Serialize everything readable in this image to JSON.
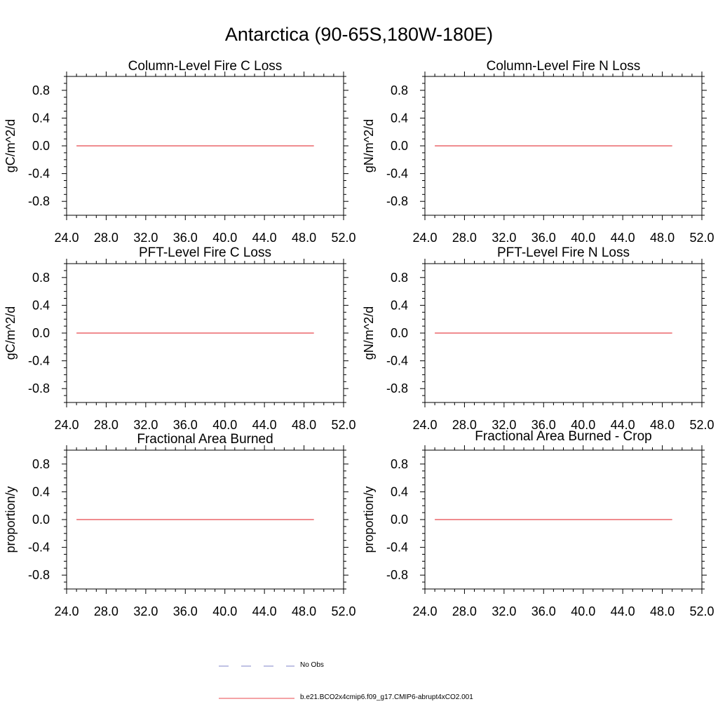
{
  "title": "Antarctica (90-65S,180W-180E)",
  "colors": {
    "model": "#e8474c",
    "obs": "#7f86c9",
    "frame": "#000000"
  },
  "legend": [
    {
      "label": "No Obs",
      "style": "dashed",
      "color": "#7f86c9"
    },
    {
      "label": "b.e21.BCO2x4cmip6.f09_g17.CMIP6-abrupt4xCO2.001",
      "style": "solid",
      "color": "#e8474c"
    }
  ],
  "chart_data": [
    {
      "type": "line",
      "title": "Column-Level Fire C Loss",
      "ylabel": "gC/m^2/d",
      "xlim": [
        24,
        52
      ],
      "ylim": [
        -1,
        1
      ],
      "xticks": [
        "24.0",
        "28.0",
        "32.0",
        "36.0",
        "40.0",
        "44.0",
        "48.0",
        "52.0"
      ],
      "yticks": [
        "0.8",
        "0.4",
        "0.0",
        "-0.4",
        "-0.8"
      ],
      "series": [
        {
          "name": "b.e21.BCO2x4cmip6.f09_g17.CMIP6-abrupt4xCO2.001",
          "x": [
            25,
            49
          ],
          "y": [
            0,
            0
          ]
        }
      ]
    },
    {
      "type": "line",
      "title": "Column-Level Fire N Loss",
      "ylabel": "gN/m^2/d",
      "xlim": [
        24,
        52
      ],
      "ylim": [
        -1,
        1
      ],
      "xticks": [
        "24.0",
        "28.0",
        "32.0",
        "36.0",
        "40.0",
        "44.0",
        "48.0",
        "52.0"
      ],
      "yticks": [
        "0.8",
        "0.4",
        "0.0",
        "-0.4",
        "-0.8"
      ],
      "series": [
        {
          "name": "b.e21.BCO2x4cmip6.f09_g17.CMIP6-abrupt4xCO2.001",
          "x": [
            25,
            49
          ],
          "y": [
            0,
            0
          ]
        }
      ]
    },
    {
      "type": "line",
      "title": "PFT-Level Fire C Loss",
      "ylabel": "gC/m^2/d",
      "xlim": [
        24,
        52
      ],
      "ylim": [
        -1,
        1
      ],
      "xticks": [
        "24.0",
        "28.0",
        "32.0",
        "36.0",
        "40.0",
        "44.0",
        "48.0",
        "52.0"
      ],
      "yticks": [
        "0.8",
        "0.4",
        "0.0",
        "-0.4",
        "-0.8"
      ],
      "series": [
        {
          "name": "b.e21.BCO2x4cmip6.f09_g17.CMIP6-abrupt4xCO2.001",
          "x": [
            25,
            49
          ],
          "y": [
            0,
            0
          ]
        }
      ]
    },
    {
      "type": "line",
      "title": "PFT-Level Fire N Loss",
      "ylabel": "gN/m^2/d",
      "xlim": [
        24,
        52
      ],
      "ylim": [
        -1,
        1
      ],
      "xticks": [
        "24.0",
        "28.0",
        "32.0",
        "36.0",
        "40.0",
        "44.0",
        "48.0",
        "52.0"
      ],
      "yticks": [
        "0.8",
        "0.4",
        "0.0",
        "-0.4",
        "-0.8"
      ],
      "series": [
        {
          "name": "b.e21.BCO2x4cmip6.f09_g17.CMIP6-abrupt4xCO2.001",
          "x": [
            25,
            49
          ],
          "y": [
            0,
            0
          ]
        }
      ]
    },
    {
      "type": "line",
      "title": "Fractional Area Burned",
      "ylabel": "proportion/y",
      "xlim": [
        24,
        52
      ],
      "ylim": [
        -1,
        1
      ],
      "xticks": [
        "24.0",
        "28.0",
        "32.0",
        "36.0",
        "40.0",
        "44.0",
        "48.0",
        "52.0"
      ],
      "yticks": [
        "0.8",
        "0.4",
        "0.0",
        "-0.4",
        "-0.8"
      ],
      "series": [
        {
          "name": "b.e21.BCO2x4cmip6.f09_g17.CMIP6-abrupt4xCO2.001",
          "x": [
            25,
            49
          ],
          "y": [
            0,
            0
          ]
        }
      ]
    },
    {
      "type": "line",
      "title": "Fractional Area Burned - Crop",
      "ylabel": "proportion/y",
      "xlim": [
        24,
        52
      ],
      "ylim": [
        -1,
        1
      ],
      "xticks": [
        "24.0",
        "28.0",
        "32.0",
        "36.0",
        "40.0",
        "44.0",
        "48.0",
        "52.0"
      ],
      "yticks": [
        "0.8",
        "0.4",
        "0.0",
        "-0.4",
        "-0.8"
      ],
      "series": [
        {
          "name": "b.e21.BCO2x4cmip6.f09_g17.CMIP6-abrupt4xCO2.001",
          "x": [
            25,
            49
          ],
          "y": [
            0,
            0
          ]
        }
      ]
    }
  ]
}
